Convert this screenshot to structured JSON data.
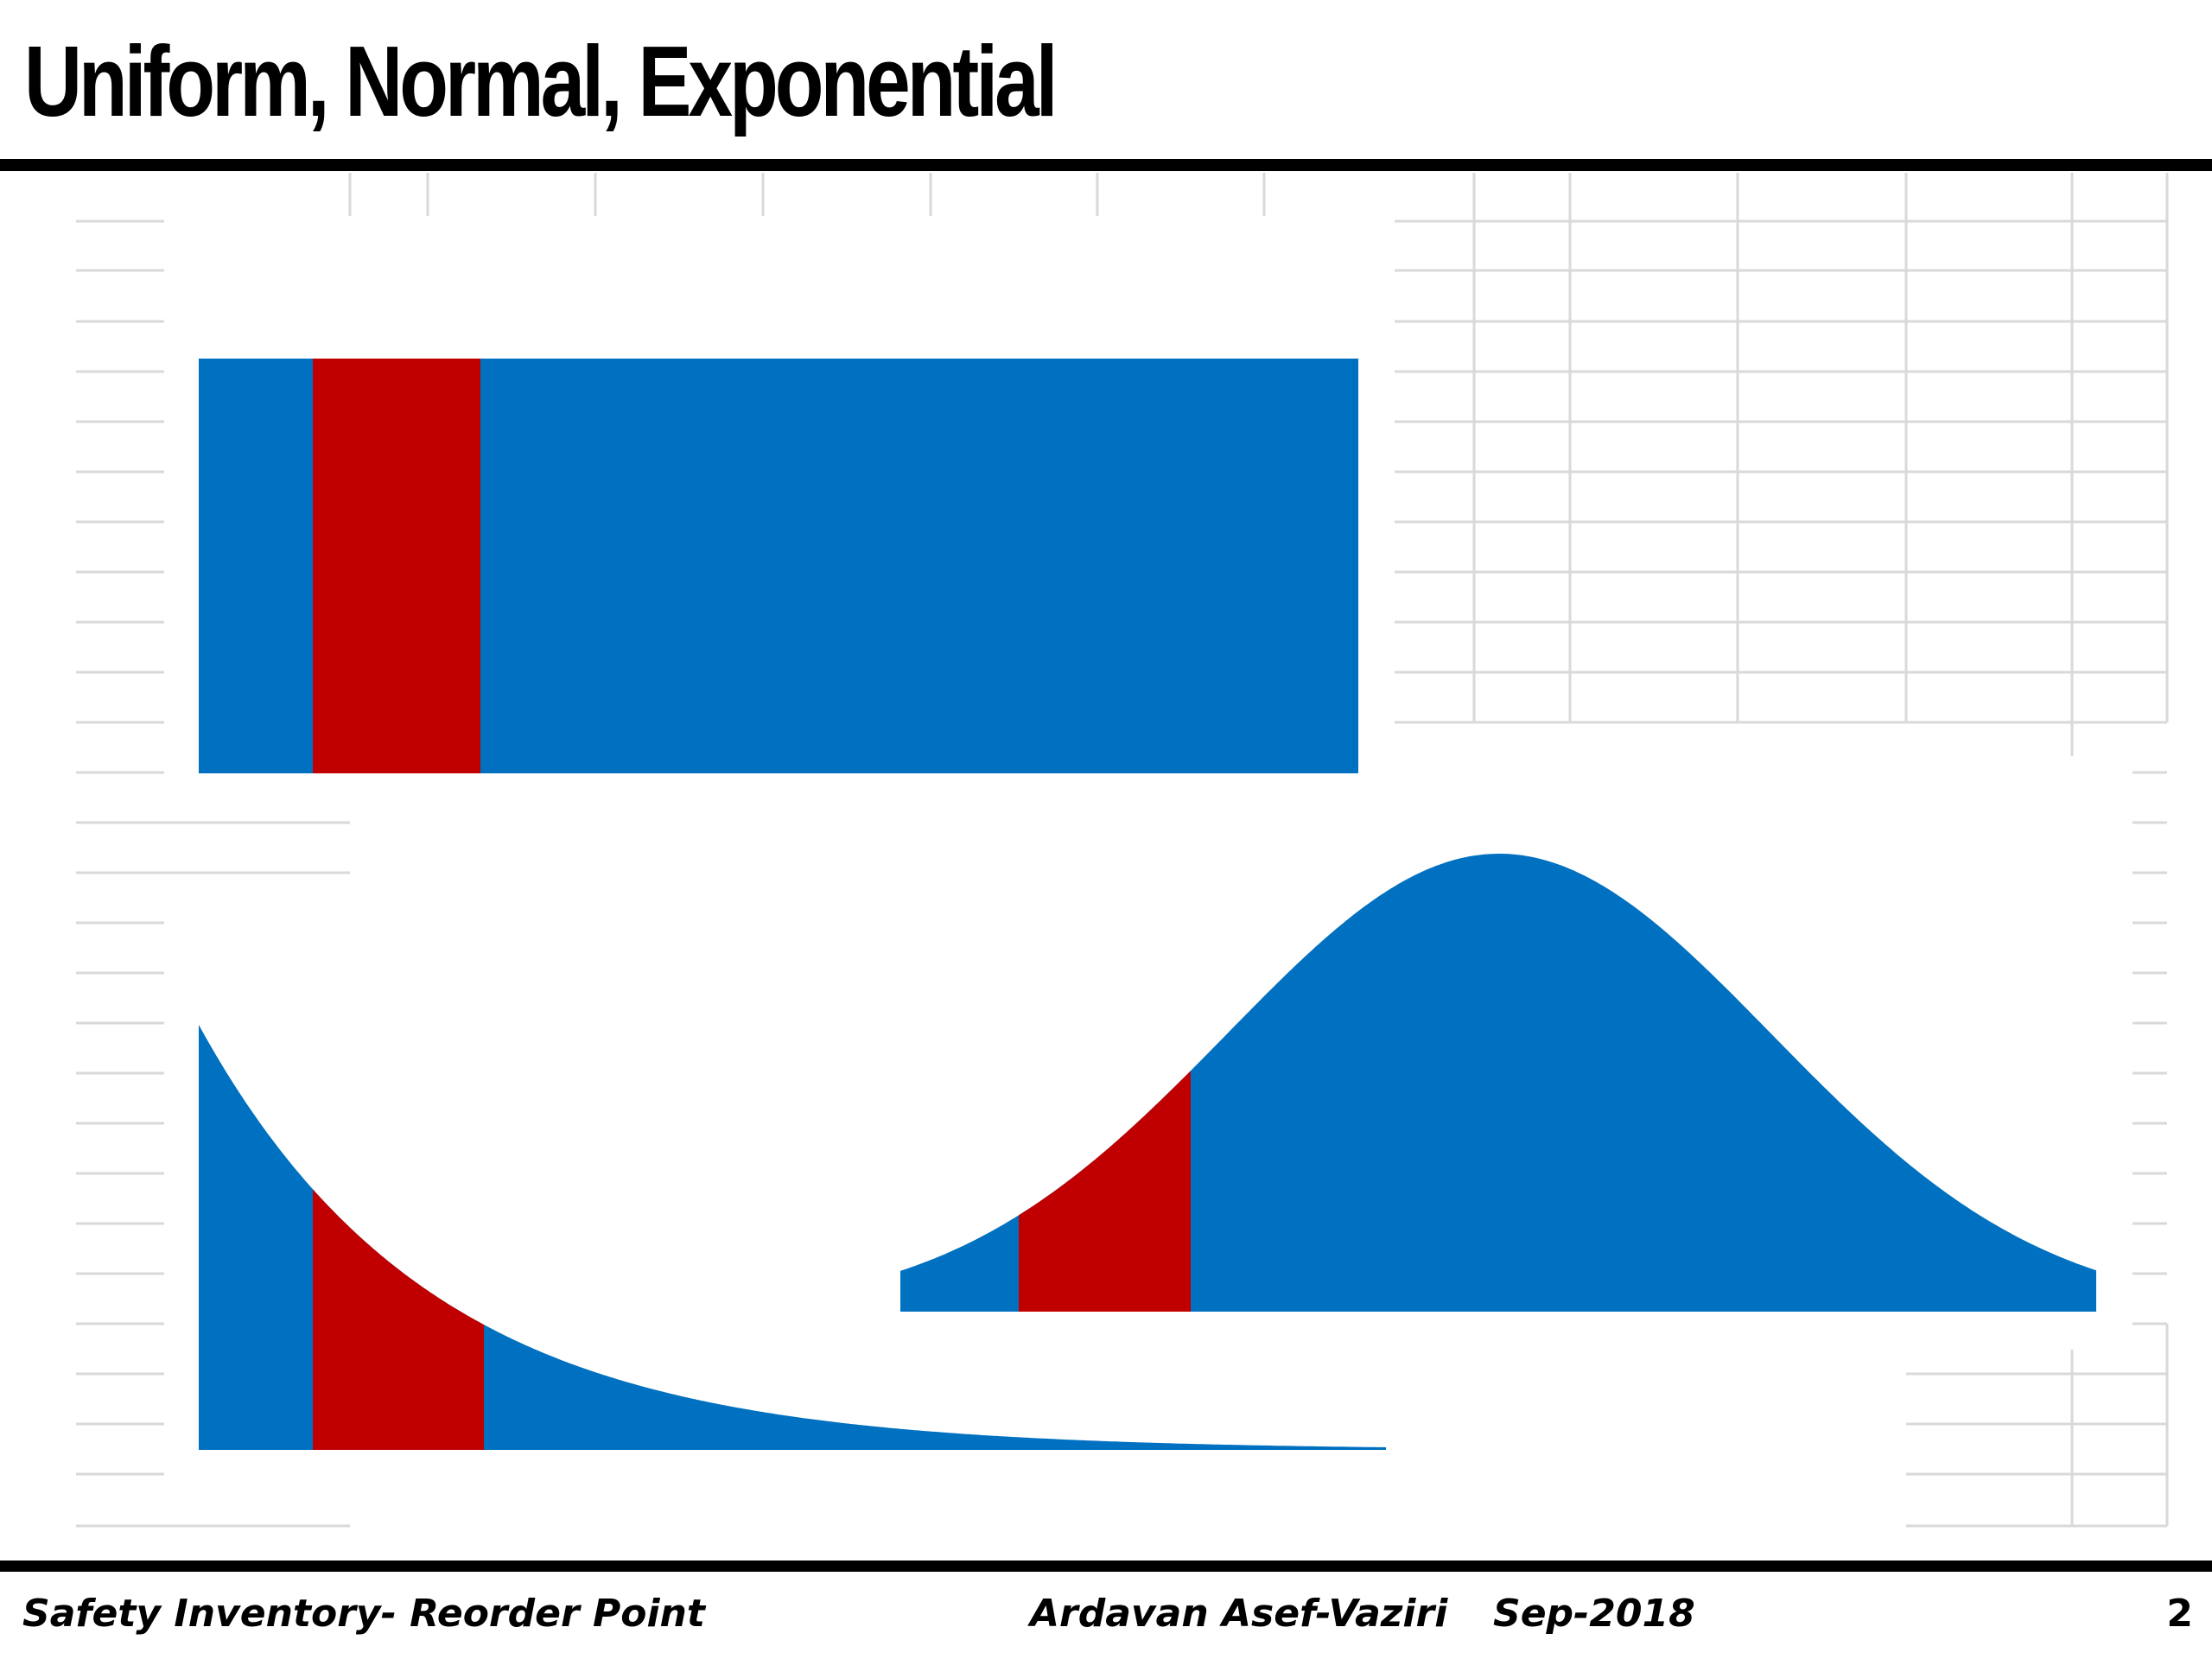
{
  "slide": {
    "title": "Uniform, Normal, Exponential"
  },
  "footer": {
    "course": "Safety Inventory- Reorder Point",
    "author": "Ardavan Asef-Vaziri",
    "date": "Sep-2018",
    "page": "2"
  },
  "colors": {
    "distribution_fill": "#0070C0",
    "highlight_fill": "#C00000",
    "gridline": "#D9D9D9",
    "rule": "#000000"
  },
  "figure": {
    "distributions": [
      {
        "name": "uniform",
        "shape": "rectangle"
      },
      {
        "name": "normal",
        "shape": "bell curve"
      },
      {
        "name": "exponential",
        "shape": "decaying curve"
      }
    ],
    "highlight": "red band near left tail of each distribution"
  }
}
